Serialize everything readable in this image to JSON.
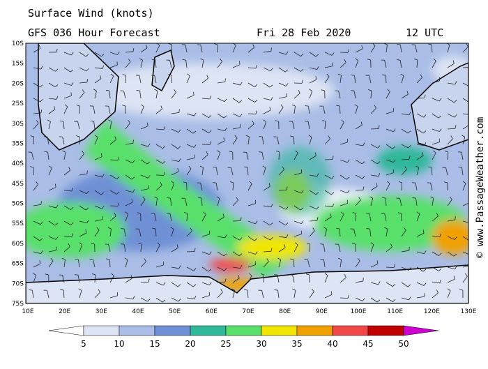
{
  "header": {
    "title": "Surface Wind (knots)",
    "model": "GFS 036 Hour Forecast",
    "date": "Fri 28 Feb 2020",
    "time": "12 UTC"
  },
  "credit": "© www.PassageWeather.com",
  "map": {
    "lat_labels": [
      "10S",
      "15S",
      "20S",
      "25S",
      "30S",
      "35S",
      "40S",
      "45S",
      "50S",
      "55S",
      "60S",
      "65S",
      "70S",
      "75S"
    ],
    "lon_labels": [
      "10E",
      "20E",
      "30E",
      "40E",
      "50E",
      "60E",
      "70E",
      "80E",
      "90E",
      "100E",
      "110E",
      "120E",
      "130E"
    ]
  },
  "colorbar": {
    "labels": [
      "5",
      "10",
      "15",
      "20",
      "25",
      "30",
      "35",
      "40",
      "45",
      "50"
    ],
    "colors": [
      "#ffffff",
      "#dde4f4",
      "#a9bde6",
      "#6f90d6",
      "#2fb89a",
      "#58e06a",
      "#f0e600",
      "#f0a000",
      "#f04848",
      "#c00000",
      "#d000d0"
    ]
  }
}
